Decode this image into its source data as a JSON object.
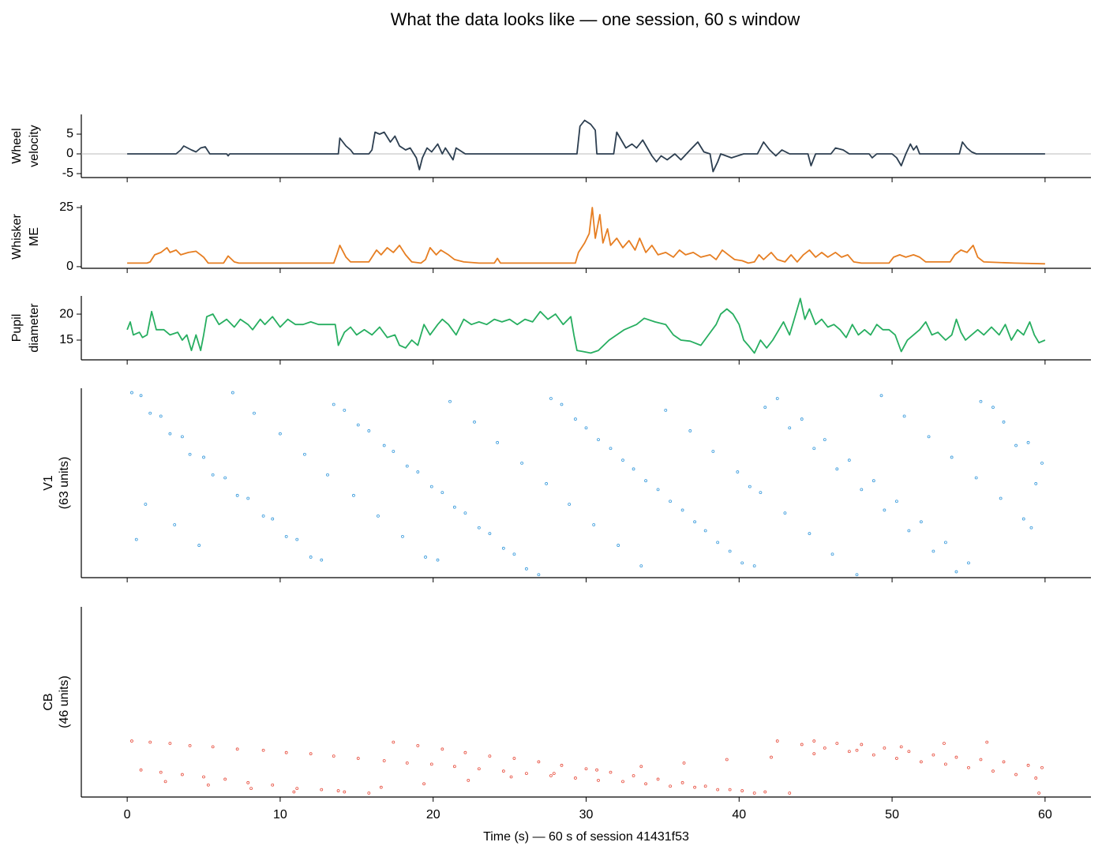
{
  "title": "What the data looks like — one session, 60 s window",
  "chart_data": [
    {
      "type": "line",
      "ylabel": [
        "Wheel",
        "velocity"
      ],
      "color": "#2c3e50",
      "hline": 0,
      "xlim": [
        -3,
        63
      ],
      "xticks": [
        0,
        10,
        20,
        30,
        40,
        50,
        60
      ],
      "ylim": [
        -6,
        10
      ],
      "yticks": [
        -5,
        0,
        5
      ],
      "x": [
        0,
        3.2,
        3.5,
        3.7,
        4.2,
        4.5,
        4.8,
        5.1,
        5.4,
        6.5,
        6.6,
        6.7,
        13.8,
        13.9,
        14.3,
        14.6,
        14.8,
        15.8,
        16.0,
        16.2,
        16.5,
        16.8,
        17.2,
        17.5,
        17.8,
        18.2,
        18.5,
        18.9,
        19.1,
        19.3,
        19.6,
        19.9,
        20.3,
        20.6,
        20.8,
        21.3,
        21.5,
        21.9,
        22.1,
        29.4,
        29.6,
        29.9,
        30.3,
        30.6,
        30.7,
        31.8,
        32.0,
        32.3,
        32.6,
        33.0,
        33.3,
        33.7,
        34.0,
        34.3,
        34.6,
        34.9,
        35.3,
        35.8,
        36.2,
        36.8,
        37.3,
        37.7,
        38.1,
        38.3,
        38.6,
        38.8,
        39.5,
        40.3,
        41.2,
        41.6,
        42.0,
        42.4,
        42.8,
        43.3,
        44.5,
        44.7,
        45.0,
        46.0,
        46.3,
        46.8,
        47.2,
        48.5,
        48.7,
        49.0,
        50.0,
        50.3,
        50.6,
        50.9,
        51.2,
        51.4,
        51.6,
        51.8,
        54.4,
        54.6,
        54.9,
        55.2,
        55.5,
        60
      ],
      "values": [
        0,
        0,
        1,
        2,
        1,
        0.5,
        1.5,
        1.8,
        0,
        0,
        -0.5,
        0,
        0,
        4,
        2,
        1,
        0,
        0,
        1,
        5.5,
        5,
        5.5,
        3,
        4.5,
        2,
        1,
        1.5,
        -1,
        -4,
        -1,
        1.5,
        0.5,
        2.5,
        0,
        1.5,
        -1.5,
        1.5,
        0.5,
        0,
        0,
        7,
        8.5,
        7.5,
        6,
        0,
        0,
        5.5,
        3.5,
        1.5,
        2.5,
        1.5,
        3.5,
        1.5,
        -0.5,
        -2,
        -0.5,
        -1.5,
        0,
        -1.5,
        1,
        3,
        0.5,
        0,
        -4.5,
        -2,
        0,
        -1,
        0,
        0,
        3,
        1,
        -0.5,
        1,
        0,
        0,
        -3,
        0,
        0,
        1.5,
        1,
        0,
        0,
        -1,
        0,
        0,
        -1,
        -3,
        0,
        2.5,
        1,
        2,
        0,
        0,
        3,
        1.5,
        0.5,
        0,
        0
      ]
    },
    {
      "type": "line",
      "ylabel": [
        "Whisker",
        "ME"
      ],
      "color": "#e67e22",
      "xlim": [
        -3,
        63
      ],
      "xticks": [
        0,
        10,
        20,
        30,
        40,
        50,
        60
      ],
      "ylim": [
        -0.7,
        26
      ],
      "yticks": [
        0,
        25
      ],
      "x": [
        0,
        1.3,
        1.5,
        1.8,
        2.2,
        2.6,
        2.8,
        3.2,
        3.5,
        4.0,
        4.5,
        5.0,
        5.3,
        6.3,
        6.6,
        7.0,
        7.3,
        13.5,
        13.7,
        13.9,
        14.3,
        14.6,
        15.8,
        16.0,
        16.3,
        16.6,
        17.0,
        17.4,
        17.8,
        18.2,
        18.6,
        19.2,
        19.5,
        19.8,
        20.2,
        20.5,
        21.0,
        21.4,
        22.0,
        23.0,
        24.0,
        24.2,
        24.4,
        29.3,
        29.5,
        29.9,
        30.2,
        30.4,
        30.6,
        30.9,
        31.1,
        31.4,
        31.6,
        32.0,
        32.4,
        32.8,
        33.2,
        33.5,
        33.9,
        34.3,
        34.7,
        35.2,
        35.7,
        36.1,
        36.5,
        37.0,
        37.5,
        38.1,
        38.5,
        38.9,
        39.3,
        39.7,
        40.2,
        40.6,
        41.0,
        41.3,
        41.6,
        42.1,
        42.5,
        43.0,
        43.4,
        43.8,
        44.2,
        44.6,
        45.0,
        45.4,
        45.8,
        46.3,
        46.7,
        47.1,
        47.5,
        48.0,
        49.8,
        50.1,
        50.5,
        50.9,
        51.4,
        51.8,
        52.2,
        53.8,
        54.1,
        54.5,
        54.9,
        55.3,
        55.6,
        56.0,
        58,
        60
      ],
      "values": [
        1.5,
        1.5,
        2,
        5,
        6,
        8,
        6,
        7,
        5,
        6,
        6.5,
        4,
        1.5,
        1.5,
        4.5,
        2,
        1.5,
        1.5,
        5,
        9,
        4,
        2,
        2,
        4,
        7,
        5,
        8,
        6,
        9,
        5,
        2,
        1.5,
        3,
        8,
        5,
        7,
        5,
        3,
        2,
        1.5,
        1.5,
        3.5,
        1.5,
        1.5,
        6,
        10,
        14,
        25,
        12,
        22,
        10,
        16,
        9,
        12,
        8,
        11,
        7,
        12,
        6,
        9,
        5,
        6,
        4,
        7,
        5,
        6,
        4,
        5,
        3,
        7,
        5,
        3,
        2.5,
        1.5,
        2,
        5,
        3,
        6,
        3,
        2,
        5,
        2,
        5,
        7,
        4,
        6,
        4,
        6,
        4,
        5,
        2,
        1.5,
        1.5,
        4,
        5,
        4,
        5,
        4,
        2,
        2,
        5,
        7,
        6,
        9,
        4,
        2,
        1.5,
        1.2
      ]
    },
    {
      "type": "line",
      "ylabel": [
        "Pupil",
        "diameter"
      ],
      "color": "#27ae60",
      "xlim": [
        -3,
        63
      ],
      "xticks": [
        0,
        10,
        20,
        30,
        40,
        50,
        60
      ],
      "ylim": [
        11.2,
        23.5
      ],
      "yticks": [
        15,
        20
      ],
      "x": [
        0,
        0.2,
        0.4,
        0.8,
        1.0,
        1.3,
        1.6,
        1.9,
        2.4,
        2.8,
        3.3,
        3.6,
        3.9,
        4.2,
        4.5,
        4.8,
        5.0,
        5.2,
        5.6,
        6.0,
        6.5,
        7.0,
        7.4,
        7.9,
        8.2,
        8.7,
        9.0,
        9.5,
        10.0,
        10.5,
        11.0,
        11.5,
        12.0,
        12.5,
        13.0,
        13.6,
        13.8,
        14.2,
        14.6,
        15.0,
        15.5,
        16.0,
        16.5,
        17.0,
        17.5,
        17.8,
        18.2,
        18.6,
        19.0,
        19.4,
        19.8,
        20.3,
        20.6,
        21.0,
        21.5,
        22.0,
        22.5,
        23.0,
        23.5,
        24.0,
        24.5,
        25.0,
        25.5,
        26.0,
        26.5,
        27.0,
        27.5,
        28.0,
        28.5,
        29.0,
        29.2,
        29.4,
        29.8,
        30.3,
        30.8,
        31.5,
        32.5,
        33.3,
        33.8,
        34.5,
        35.2,
        35.7,
        36.2,
        36.8,
        37.5,
        38.0,
        38.5,
        38.8,
        39.2,
        39.6,
        40.0,
        40.3,
        40.6,
        41.0,
        41.4,
        41.8,
        42.2,
        42.6,
        42.9,
        43.3,
        43.6,
        44.0,
        44.3,
        44.6,
        45.0,
        45.4,
        45.8,
        46.2,
        46.6,
        47.0,
        47.4,
        47.8,
        48.2,
        48.6,
        49.0,
        49.4,
        49.8,
        50.2,
        50.6,
        51.0,
        51.4,
        51.8,
        52.2,
        52.6,
        53.0,
        53.5,
        53.9,
        54.2,
        54.5,
        54.8,
        55.2,
        55.6,
        56.0,
        56.5,
        57.0,
        57.4,
        57.8,
        58.2,
        58.6,
        59.0,
        59.3,
        59.6,
        60
      ],
      "values": [
        17,
        18.5,
        16,
        16.5,
        15.5,
        16,
        20.5,
        17,
        17,
        16,
        16.5,
        15,
        16,
        13,
        16,
        13,
        16,
        19.5,
        20,
        18,
        19,
        17.5,
        19,
        18,
        17,
        19,
        18,
        19.5,
        17.5,
        19,
        18,
        18,
        18.5,
        18,
        18,
        18,
        14,
        16.5,
        17.5,
        16,
        17,
        16,
        17.5,
        15.5,
        16,
        14,
        13.5,
        15,
        14,
        18,
        16,
        18,
        19,
        18,
        16,
        19,
        18,
        18.5,
        18,
        19,
        18.5,
        19,
        18,
        19,
        18.5,
        20.5,
        19,
        20,
        18,
        19.5,
        16,
        13,
        12.8,
        12.5,
        13,
        15,
        17,
        18,
        19.2,
        18.5,
        18,
        16,
        15,
        14.8,
        14,
        16,
        18,
        20,
        21,
        20,
        18,
        15,
        14,
        12.5,
        15,
        13.5,
        15,
        17,
        18.5,
        16,
        19,
        23,
        19,
        21,
        18,
        19,
        17.5,
        18,
        17,
        15.5,
        18,
        16,
        17,
        16,
        18,
        17,
        17,
        16,
        12.8,
        15,
        16,
        17,
        18.5,
        16,
        16.5,
        15,
        16,
        19,
        16.5,
        15,
        16,
        17,
        16,
        17.5,
        16,
        18,
        15,
        17,
        16,
        18.5,
        16,
        14.5,
        15
      ]
    },
    {
      "type": "raster",
      "ylabel": [
        "V1",
        "(63 units)"
      ],
      "color": "#3498db",
      "xlim": [
        -3,
        63
      ],
      "xticks": [
        0,
        10,
        20,
        30,
        40,
        50,
        60
      ],
      "ylim": [
        -1,
        63.5
      ],
      "x": [
        0.3,
        1.5,
        2.8,
        4.1,
        5.6,
        7.2,
        8.9,
        10.4,
        12.0,
        13.5,
        15.1,
        16.8,
        18.3,
        19.9,
        21.4,
        23.0,
        24.6,
        26.1,
        27.7,
        29.3,
        30.8,
        32.4,
        33.9,
        35.5,
        37.1,
        38.6,
        40.2,
        41.7,
        43.3,
        44.9,
        46.4,
        48.0,
        49.5,
        51.1,
        52.7,
        54.2,
        55.8,
        57.3,
        58.9,
        59.8,
        0.9,
        2.2,
        3.6,
        5.0,
        6.4,
        7.9,
        9.5,
        11.1,
        12.7,
        14.2,
        15.8,
        17.4,
        19.0,
        20.6,
        22.1,
        23.7,
        25.3,
        26.9,
        28.4,
        30.0,
        31.6,
        33.1,
        34.7,
        36.3,
        37.8,
        39.4,
        41.0,
        42.5,
        44.1,
        45.6,
        47.2,
        48.8,
        50.3,
        51.9,
        53.5,
        55.0,
        56.6,
        58.1,
        59.4,
        1.2,
        3.1,
        4.7,
        6.9,
        8.3,
        10.0,
        11.6,
        13.1,
        14.8,
        16.4,
        18.0,
        19.5,
        21.1,
        22.7,
        24.2,
        25.8,
        27.4,
        28.9,
        30.5,
        32.1,
        33.6,
        35.2,
        36.8,
        38.3,
        39.9,
        41.4,
        43.0,
        44.6,
        46.1,
        47.7,
        49.3,
        50.8,
        52.4,
        53.9,
        55.5,
        57.1,
        58.6,
        0.6,
        20.3,
        40.7,
        59.1
      ],
      "values": [
        62,
        55,
        48,
        41,
        34,
        27,
        20,
        13,
        6,
        58,
        51,
        44,
        37,
        30,
        23,
        16,
        9,
        2,
        60,
        53,
        46,
        39,
        32,
        25,
        18,
        11,
        4,
        57,
        50,
        43,
        36,
        29,
        22,
        15,
        8,
        1,
        59,
        52,
        45,
        38,
        61,
        54,
        47,
        40,
        33,
        26,
        19,
        12,
        5,
        56,
        49,
        42,
        35,
        28,
        21,
        14,
        7,
        0,
        58,
        50,
        43,
        36,
        29,
        22,
        15,
        8,
        3,
        60,
        53,
        46,
        39,
        32,
        25,
        18,
        11,
        4,
        57,
        44,
        31,
        24,
        17,
        10,
        62,
        55,
        48,
        41,
        34,
        27,
        20,
        13,
        6,
        59,
        52,
        45,
        38,
        31,
        24,
        17,
        10,
        3,
        56,
        49,
        42,
        35,
        28,
        21,
        14,
        7,
        0,
        61,
        54,
        47,
        40,
        33,
        26,
        19,
        12,
        5,
        30,
        16
      ]
    },
    {
      "type": "raster",
      "ylabel": [
        "CB",
        "(46 units)"
      ],
      "color": "#e74c3c",
      "xlabel": "Time (s) — 60 s of session 41431f53",
      "xlim": [
        -3,
        63
      ],
      "xticks": [
        0,
        10,
        20,
        30,
        40,
        50,
        60
      ],
      "ylim": [
        -3.4,
        161
      ],
      "x": [
        0.3,
        1.5,
        2.8,
        4.1,
        5.6,
        7.2,
        8.9,
        10.4,
        12.0,
        13.5,
        15.1,
        16.8,
        18.3,
        19.9,
        21.4,
        23.0,
        24.6,
        26.1,
        27.7,
        29.3,
        30.8,
        32.4,
        33.9,
        35.5,
        37.1,
        38.6,
        40.2,
        41.7,
        43.3,
        44.9,
        46.4,
        48.0,
        49.5,
        51.1,
        52.7,
        54.2,
        55.8,
        57.3,
        58.9,
        59.8,
        0.9,
        2.2,
        3.6,
        5.0,
        6.4,
        7.9,
        9.5,
        11.1,
        12.7,
        14.2,
        15.8,
        17.4,
        19.0,
        20.6,
        22.1,
        23.7,
        25.3,
        26.9,
        28.4,
        30.0,
        31.6,
        33.1,
        34.7,
        36.3,
        37.8,
        39.4,
        41.0,
        42.5,
        44.1,
        45.6,
        47.2,
        48.8,
        50.3,
        51.9,
        53.5,
        55.0,
        56.6,
        58.1,
        59.4,
        2.5,
        5.3,
        8.1,
        10.9,
        13.8,
        16.6,
        19.4,
        22.3,
        25.1,
        27.9,
        30.7,
        33.6,
        36.4,
        39.2,
        42.1,
        44.9,
        47.7,
        50.6,
        53.4,
        56.2,
        59.6
      ],
      "values": [
        45,
        44,
        43,
        41,
        40,
        38,
        37,
        35,
        34,
        32,
        30,
        28,
        26,
        25,
        23,
        21,
        19,
        17,
        15,
        13,
        11,
        10,
        8,
        6,
        5,
        3,
        2,
        1,
        0,
        45,
        43,
        42,
        39,
        36,
        33,
        31,
        29,
        27,
        24,
        22,
        20,
        18,
        16,
        14,
        12,
        9,
        7,
        4,
        3,
        1,
        0,
        44,
        41,
        38,
        35,
        32,
        30,
        27,
        24,
        21,
        18,
        15,
        12,
        9,
        6,
        3,
        0,
        45,
        42,
        39,
        36,
        33,
        30,
        27,
        25,
        22,
        19,
        16,
        13,
        10,
        7,
        4,
        1,
        2,
        5,
        8,
        11,
        14,
        17,
        20,
        23,
        26,
        29,
        31,
        34,
        37,
        40,
        43,
        44,
        0
      ]
    }
  ]
}
